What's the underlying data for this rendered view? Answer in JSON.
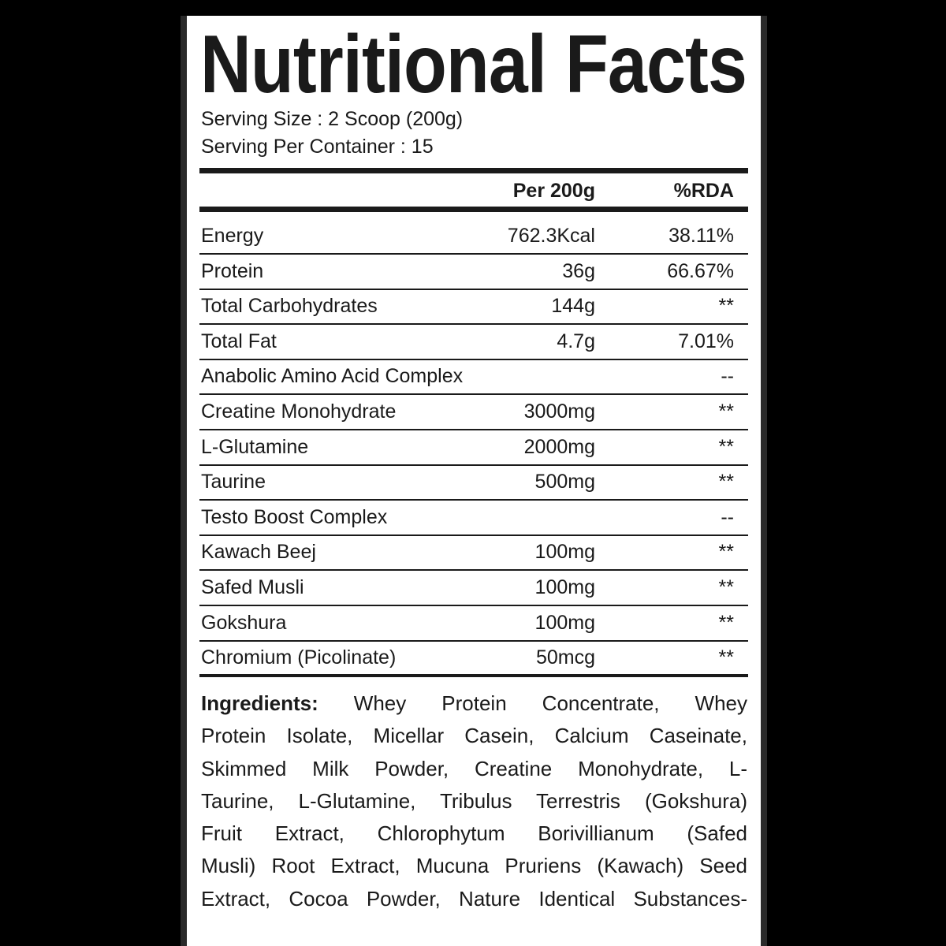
{
  "title": "Nutritional Facts",
  "serving_size": "Serving Size : 2 Scoop (200g)",
  "servings_per_container": "Serving Per Container : 15",
  "table": {
    "headers": [
      "",
      "Per 200g",
      "%RDA"
    ],
    "rows": [
      {
        "name": "Energy",
        "amount": "762.3Kcal",
        "rda": "38.11%"
      },
      {
        "name": "Protein",
        "amount": "36g",
        "rda": "66.67%"
      },
      {
        "name": "Total Carbohydrates",
        "amount": "144g",
        "rda": "**"
      },
      {
        "name": "Total Fat",
        "amount": "4.7g",
        "rda": "7.01%"
      },
      {
        "name": "Anabolic Amino Acid Complex",
        "amount": "",
        "rda": "--"
      },
      {
        "name": "Creatine Monohydrate",
        "amount": "3000mg",
        "rda": "**"
      },
      {
        "name": "L-Glutamine",
        "amount": "2000mg",
        "rda": "**"
      },
      {
        "name": "Taurine",
        "amount": "500mg",
        "rda": "**"
      },
      {
        "name": "Testo Boost Complex",
        "amount": "",
        "rda": "--"
      },
      {
        "name": "Kawach Beej",
        "amount": "100mg",
        "rda": "**"
      },
      {
        "name": "Safed Musli",
        "amount": "100mg",
        "rda": "**"
      },
      {
        "name": "Gokshura",
        "amount": "100mg",
        "rda": "**"
      },
      {
        "name": "Chromium (Picolinate)",
        "amount": "50mcg",
        "rda": "**"
      }
    ]
  },
  "ingredients": {
    "label": "Ingredients:",
    "lines": [
      " Whey Protein Concentrate, Whey",
      "Protein Isolate, Micellar Casein, Calcium Caseinate,",
      "Skimmed Milk Powder, Creatine Monohydrate, L-",
      "Taurine, L-Glutamine, Tribulus Terrestris (Gokshura)",
      "Fruit Extract, Chlorophytum Borivillianum (Safed",
      "Musli) Root Extract, Mucuna Pruriens (Kawach) Seed",
      "Extract, Cocoa Powder, Nature Identical Substances-"
    ]
  }
}
